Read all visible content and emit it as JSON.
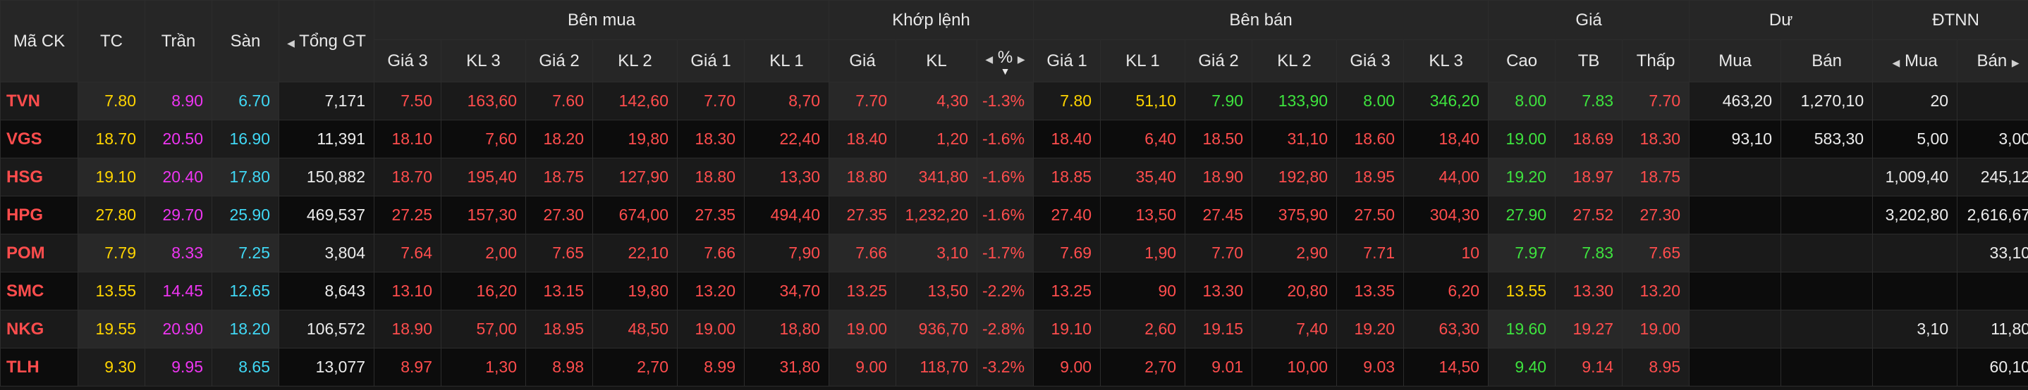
{
  "header": {
    "group_buy": "Bên mua",
    "group_match": "Khớp lệnh",
    "group_sell": "Bên bán",
    "group_price": "Giá",
    "group_surplus": "Dư",
    "group_foreign": "ĐTNN",
    "symbol": "Mã CK",
    "ref": "TC",
    "ceil": "Trần",
    "floor": "Sàn",
    "total_value": "Tổng GT",
    "buy": [
      "Giá 3",
      "KL 3",
      "Giá 2",
      "KL 2",
      "Giá 1",
      "KL 1"
    ],
    "match": [
      "Giá",
      "KL",
      "%"
    ],
    "sell": [
      "Giá 1",
      "KL 1",
      "Giá 2",
      "KL 2",
      "Giá 3",
      "KL 3"
    ],
    "price": [
      "Cao",
      "TB",
      "Thấp"
    ],
    "surplus": [
      "Mua",
      "Bán"
    ],
    "foreign": [
      "Mua",
      "Bán"
    ]
  },
  "colors": {
    "red": "#ff4d4d",
    "yellow": "#ffd400",
    "green": "#3ee33e",
    "magenta": "#ee35f2",
    "cyan": "#40d8f5",
    "white": "#ececec"
  },
  "rows": [
    [
      "TVN",
      "7.80",
      "8.90",
      "6.70",
      "7,171",
      "7.50",
      "163,60",
      "7.60",
      "142,60",
      "7.70",
      "8,70",
      "7.70",
      "4,30",
      "-1.3%",
      "7.80",
      "51,10",
      "7.90",
      "133,90",
      "8.00",
      "346,20",
      "8.00",
      "7.83",
      "7.70",
      "463,20",
      "1,270,10",
      "20",
      ""
    ],
    [
      "VGS",
      "18.70",
      "20.50",
      "16.90",
      "11,391",
      "18.10",
      "7,60",
      "18.20",
      "19,80",
      "18.30",
      "22,40",
      "18.40",
      "1,20",
      "-1.6%",
      "18.40",
      "6,40",
      "18.50",
      "31,10",
      "18.60",
      "18,40",
      "19.00",
      "18.69",
      "18.30",
      "93,10",
      "583,30",
      "5,00",
      "3,00"
    ],
    [
      "HSG",
      "19.10",
      "20.40",
      "17.80",
      "150,882",
      "18.70",
      "195,40",
      "18.75",
      "127,90",
      "18.80",
      "13,30",
      "18.80",
      "341,80",
      "-1.6%",
      "18.85",
      "35,40",
      "18.90",
      "192,80",
      "18.95",
      "44,00",
      "19.20",
      "18.97",
      "18.75",
      "",
      "",
      "1,009,40",
      "245,12"
    ],
    [
      "HPG",
      "27.80",
      "29.70",
      "25.90",
      "469,537",
      "27.25",
      "157,30",
      "27.30",
      "674,00",
      "27.35",
      "494,40",
      "27.35",
      "1,232,20",
      "-1.6%",
      "27.40",
      "13,50",
      "27.45",
      "375,90",
      "27.50",
      "304,30",
      "27.90",
      "27.52",
      "27.30",
      "",
      "",
      "3,202,80",
      "2,616,67"
    ],
    [
      "POM",
      "7.79",
      "8.33",
      "7.25",
      "3,804",
      "7.64",
      "2,00",
      "7.65",
      "22,10",
      "7.66",
      "7,90",
      "7.66",
      "3,10",
      "-1.7%",
      "7.69",
      "1,90",
      "7.70",
      "2,90",
      "7.71",
      "10",
      "7.97",
      "7.83",
      "7.65",
      "",
      "",
      "",
      "33,10"
    ],
    [
      "SMC",
      "13.55",
      "14.45",
      "12.65",
      "8,643",
      "13.10",
      "16,20",
      "13.15",
      "19,80",
      "13.20",
      "34,70",
      "13.25",
      "13,50",
      "-2.2%",
      "13.25",
      "90",
      "13.30",
      "20,80",
      "13.35",
      "6,20",
      "13.55",
      "13.30",
      "13.20",
      "",
      "",
      "",
      ""
    ],
    [
      "NKG",
      "19.55",
      "20.90",
      "18.20",
      "106,572",
      "18.90",
      "57,00",
      "18.95",
      "48,50",
      "19.00",
      "18,80",
      "19.00",
      "936,70",
      "-2.8%",
      "19.10",
      "2,60",
      "19.15",
      "7,40",
      "19.20",
      "63,30",
      "19.60",
      "19.27",
      "19.00",
      "",
      "",
      "3,10",
      "11,80"
    ],
    [
      "TLH",
      "9.30",
      "9.95",
      "8.65",
      "13,077",
      "8.97",
      "1,30",
      "8.98",
      "2,70",
      "8.99",
      "31,80",
      "9.00",
      "118,70",
      "-3.2%",
      "9.00",
      "2,70",
      "9.01",
      "10,00",
      "9.03",
      "14,50",
      "9.40",
      "9.14",
      "8.95",
      "",
      "",
      "",
      "60,10"
    ]
  ],
  "row_colors": [
    [
      "red",
      "yel",
      "mag",
      "cyn",
      "wht",
      "red",
      "red",
      "red",
      "red",
      "red",
      "red",
      "red",
      "red",
      "red",
      "yel",
      "yel",
      "grn",
      "grn",
      "grn",
      "grn",
      "grn",
      "grn",
      "red",
      "wht",
      "wht",
      "wht",
      "wht"
    ],
    [
      "red",
      "yel",
      "mag",
      "cyn",
      "wht",
      "red",
      "red",
      "red",
      "red",
      "red",
      "red",
      "red",
      "red",
      "red",
      "red",
      "red",
      "red",
      "red",
      "red",
      "red",
      "grn",
      "red",
      "red",
      "wht",
      "wht",
      "wht",
      "wht"
    ],
    [
      "red",
      "yel",
      "mag",
      "cyn",
      "wht",
      "red",
      "red",
      "red",
      "red",
      "red",
      "red",
      "red",
      "red",
      "red",
      "red",
      "red",
      "red",
      "red",
      "red",
      "red",
      "grn",
      "red",
      "red",
      "wht",
      "wht",
      "wht",
      "wht"
    ],
    [
      "red",
      "yel",
      "mag",
      "cyn",
      "wht",
      "red",
      "red",
      "red",
      "red",
      "red",
      "red",
      "red",
      "red",
      "red",
      "red",
      "red",
      "red",
      "red",
      "red",
      "red",
      "grn",
      "red",
      "red",
      "wht",
      "wht",
      "wht",
      "wht"
    ],
    [
      "red",
      "yel",
      "mag",
      "cyn",
      "wht",
      "red",
      "red",
      "red",
      "red",
      "red",
      "red",
      "red",
      "red",
      "red",
      "red",
      "red",
      "red",
      "red",
      "red",
      "red",
      "grn",
      "grn",
      "red",
      "wht",
      "wht",
      "wht",
      "wht"
    ],
    [
      "red",
      "yel",
      "mag",
      "cyn",
      "wht",
      "red",
      "red",
      "red",
      "red",
      "red",
      "red",
      "red",
      "red",
      "red",
      "red",
      "red",
      "red",
      "red",
      "red",
      "red",
      "yel",
      "red",
      "red",
      "wht",
      "wht",
      "wht",
      "wht"
    ],
    [
      "red",
      "yel",
      "mag",
      "cyn",
      "wht",
      "red",
      "red",
      "red",
      "red",
      "red",
      "red",
      "red",
      "red",
      "red",
      "red",
      "red",
      "red",
      "red",
      "red",
      "red",
      "grn",
      "red",
      "red",
      "wht",
      "wht",
      "wht",
      "wht"
    ],
    [
      "red",
      "yel",
      "mag",
      "cyn",
      "wht",
      "red",
      "red",
      "red",
      "red",
      "red",
      "red",
      "red",
      "red",
      "red",
      "red",
      "red",
      "red",
      "red",
      "red",
      "red",
      "grn",
      "red",
      "red",
      "wht",
      "wht",
      "wht",
      "wht"
    ]
  ]
}
